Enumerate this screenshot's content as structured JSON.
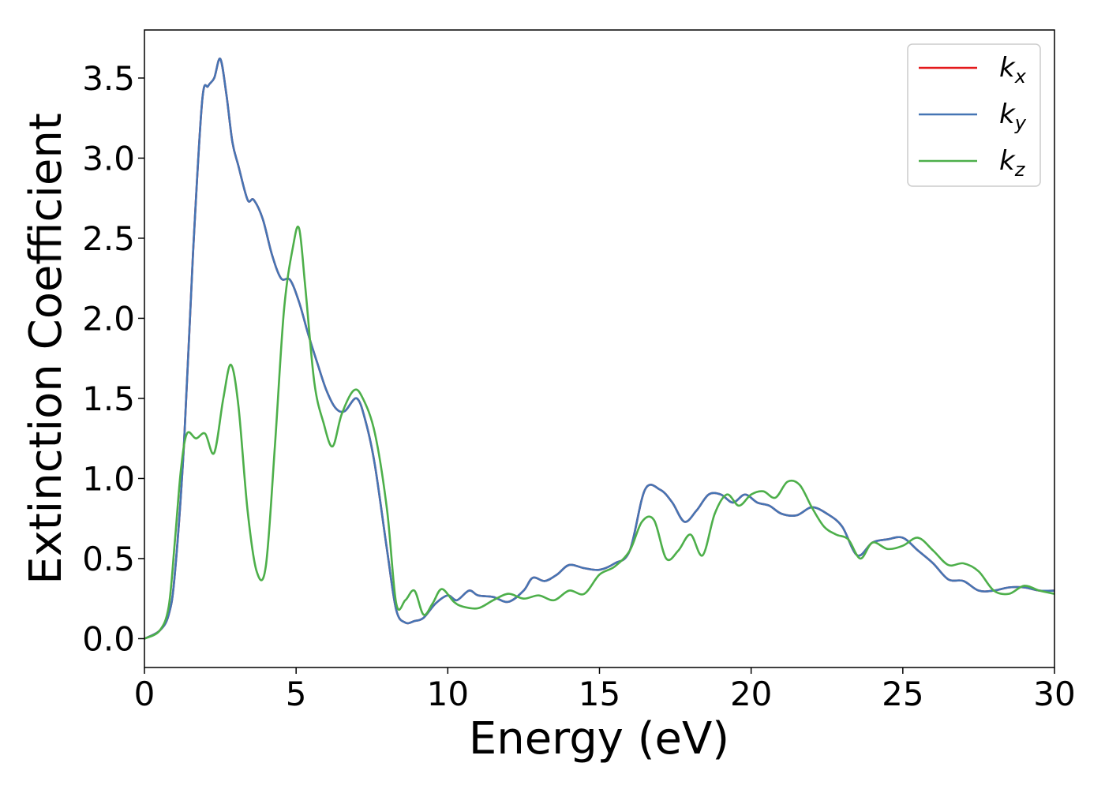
{
  "chart_data": {
    "type": "line",
    "xlabel": "Energy (eV)",
    "ylabel": "Extinction Coefficient",
    "xlim": [
      0,
      30
    ],
    "ylim": [
      -0.18,
      3.8
    ],
    "xticks": [
      0,
      5,
      10,
      15,
      20,
      25,
      30
    ],
    "xtick_labels": [
      "0",
      "5",
      "10",
      "15",
      "20",
      "25",
      "30"
    ],
    "yticks": [
      0.0,
      0.5,
      1.0,
      1.5,
      2.0,
      2.5,
      3.0,
      3.5
    ],
    "ytick_labels": [
      "0.0",
      "0.5",
      "1.0",
      "1.5",
      "2.0",
      "2.5",
      "3.0",
      "3.5"
    ],
    "grid": false,
    "legend_position": "top-right",
    "series": [
      {
        "name": "k",
        "subscript": "x",
        "color": "#e41a1c",
        "x": [
          0.0,
          0.5,
          0.8,
          1.0,
          1.3,
          1.6,
          1.9,
          2.1,
          2.3,
          2.5,
          2.7,
          2.9,
          3.1,
          3.4,
          3.6,
          3.9,
          4.2,
          4.5,
          4.8,
          5.1,
          5.4,
          5.7,
          6.0,
          6.3,
          6.6,
          7.0,
          7.3,
          7.6,
          8.0,
          8.3,
          8.6,
          8.9,
          9.2,
          9.6,
          10.0,
          10.3,
          10.7,
          11.0,
          11.5,
          12.0,
          12.5,
          12.8,
          13.2,
          13.6,
          14.0,
          14.5,
          15.0,
          15.5,
          16.0,
          16.5,
          17.0,
          17.4,
          17.8,
          18.2,
          18.6,
          19.0,
          19.4,
          19.8,
          20.2,
          20.6,
          21.0,
          21.5,
          22.0,
          22.5,
          23.0,
          23.5,
          24.0,
          24.5,
          25.0,
          25.5,
          26.0,
          26.5,
          27.0,
          27.5,
          28.0,
          28.5,
          29.0,
          29.5,
          30.0
        ],
        "values": [
          0.0,
          0.05,
          0.15,
          0.4,
          1.2,
          2.4,
          3.35,
          3.45,
          3.5,
          3.62,
          3.4,
          3.1,
          2.95,
          2.74,
          2.74,
          2.62,
          2.4,
          2.25,
          2.24,
          2.1,
          1.9,
          1.72,
          1.55,
          1.44,
          1.42,
          1.5,
          1.35,
          1.08,
          0.55,
          0.18,
          0.1,
          0.11,
          0.13,
          0.22,
          0.27,
          0.24,
          0.3,
          0.27,
          0.26,
          0.23,
          0.3,
          0.38,
          0.36,
          0.4,
          0.46,
          0.44,
          0.43,
          0.47,
          0.55,
          0.93,
          0.93,
          0.85,
          0.73,
          0.8,
          0.9,
          0.9,
          0.85,
          0.9,
          0.85,
          0.83,
          0.78,
          0.77,
          0.82,
          0.78,
          0.7,
          0.52,
          0.6,
          0.62,
          0.63,
          0.55,
          0.47,
          0.37,
          0.36,
          0.3,
          0.3,
          0.32,
          0.32,
          0.3,
          0.3
        ]
      },
      {
        "name": "k",
        "subscript": "y",
        "color": "#4575b4",
        "x": [
          0.0,
          0.5,
          0.8,
          1.0,
          1.3,
          1.6,
          1.9,
          2.1,
          2.3,
          2.5,
          2.7,
          2.9,
          3.1,
          3.4,
          3.6,
          3.9,
          4.2,
          4.5,
          4.8,
          5.1,
          5.4,
          5.7,
          6.0,
          6.3,
          6.6,
          7.0,
          7.3,
          7.6,
          8.0,
          8.3,
          8.6,
          8.9,
          9.2,
          9.6,
          10.0,
          10.3,
          10.7,
          11.0,
          11.5,
          12.0,
          12.5,
          12.8,
          13.2,
          13.6,
          14.0,
          14.5,
          15.0,
          15.5,
          16.0,
          16.5,
          17.0,
          17.4,
          17.8,
          18.2,
          18.6,
          19.0,
          19.4,
          19.8,
          20.2,
          20.6,
          21.0,
          21.5,
          22.0,
          22.5,
          23.0,
          23.5,
          24.0,
          24.5,
          25.0,
          25.5,
          26.0,
          26.5,
          27.0,
          27.5,
          28.0,
          28.5,
          29.0,
          29.5,
          30.0
        ],
        "values": [
          0.0,
          0.05,
          0.15,
          0.4,
          1.2,
          2.4,
          3.35,
          3.45,
          3.5,
          3.62,
          3.4,
          3.1,
          2.95,
          2.74,
          2.74,
          2.62,
          2.4,
          2.25,
          2.24,
          2.1,
          1.9,
          1.72,
          1.55,
          1.44,
          1.42,
          1.5,
          1.35,
          1.08,
          0.55,
          0.18,
          0.1,
          0.11,
          0.13,
          0.22,
          0.27,
          0.24,
          0.3,
          0.27,
          0.26,
          0.23,
          0.3,
          0.38,
          0.36,
          0.4,
          0.46,
          0.44,
          0.43,
          0.47,
          0.55,
          0.93,
          0.93,
          0.85,
          0.73,
          0.8,
          0.9,
          0.9,
          0.85,
          0.9,
          0.85,
          0.83,
          0.78,
          0.77,
          0.82,
          0.78,
          0.7,
          0.52,
          0.6,
          0.62,
          0.63,
          0.55,
          0.47,
          0.37,
          0.36,
          0.3,
          0.3,
          0.32,
          0.32,
          0.3,
          0.3
        ]
      },
      {
        "name": "k",
        "subscript": "z",
        "color": "#4daf4a",
        "x": [
          0.0,
          0.5,
          0.8,
          1.0,
          1.2,
          1.4,
          1.7,
          2.0,
          2.3,
          2.6,
          2.85,
          3.1,
          3.4,
          3.7,
          4.0,
          4.3,
          4.6,
          4.9,
          5.1,
          5.3,
          5.6,
          5.9,
          6.2,
          6.5,
          6.9,
          7.2,
          7.6,
          8.0,
          8.3,
          8.6,
          8.9,
          9.2,
          9.5,
          9.8,
          10.2,
          10.5,
          11.0,
          11.5,
          12.0,
          12.5,
          13.0,
          13.5,
          14.0,
          14.5,
          15.0,
          15.5,
          16.0,
          16.4,
          16.8,
          17.2,
          17.6,
          18.0,
          18.4,
          18.8,
          19.2,
          19.6,
          20.0,
          20.4,
          20.8,
          21.2,
          21.6,
          22.0,
          22.4,
          22.8,
          23.2,
          23.6,
          24.0,
          24.5,
          25.0,
          25.5,
          26.0,
          26.5,
          27.0,
          27.5,
          28.0,
          28.5,
          29.0,
          29.5,
          30.0
        ],
        "values": [
          0.0,
          0.05,
          0.2,
          0.6,
          1.05,
          1.28,
          1.25,
          1.28,
          1.16,
          1.5,
          1.71,
          1.45,
          0.8,
          0.42,
          0.45,
          1.2,
          2.05,
          2.45,
          2.56,
          2.2,
          1.6,
          1.35,
          1.2,
          1.4,
          1.55,
          1.5,
          1.28,
          0.8,
          0.22,
          0.24,
          0.3,
          0.15,
          0.22,
          0.31,
          0.23,
          0.2,
          0.19,
          0.24,
          0.28,
          0.25,
          0.27,
          0.24,
          0.3,
          0.28,
          0.4,
          0.45,
          0.55,
          0.73,
          0.74,
          0.5,
          0.55,
          0.65,
          0.52,
          0.78,
          0.9,
          0.83,
          0.9,
          0.92,
          0.88,
          0.98,
          0.96,
          0.82,
          0.7,
          0.65,
          0.62,
          0.5,
          0.6,
          0.56,
          0.58,
          0.63,
          0.55,
          0.46,
          0.47,
          0.42,
          0.3,
          0.28,
          0.33,
          0.3,
          0.28
        ]
      }
    ]
  }
}
